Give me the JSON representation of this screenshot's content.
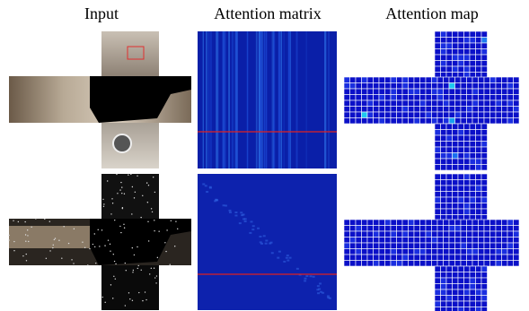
{
  "headers": [
    "Input",
    "Attention matrix",
    "Attention map"
  ]
}
